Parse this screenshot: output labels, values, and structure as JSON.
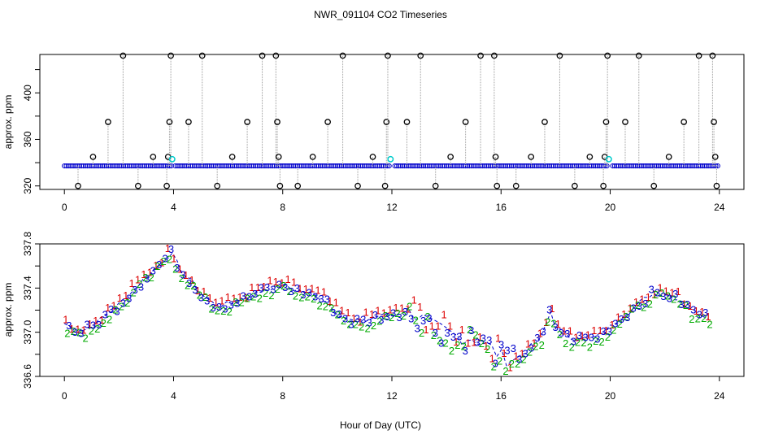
{
  "title": "NWR_091104  CO2 Timeseries",
  "chart_data": [
    {
      "type": "scatter",
      "panel": "top",
      "title": "",
      "xlabel": "",
      "ylabel": "approx. ppm",
      "xlim": [
        -0.9,
        24.9
      ],
      "ylim": [
        317,
        433
      ],
      "xticks": [
        0,
        4,
        8,
        12,
        16,
        20,
        24
      ],
      "yticks": [
        320,
        360,
        400
      ],
      "baseline_ppm": 337.2,
      "spike_values": [
        320,
        345,
        375,
        432
      ],
      "spikes": [
        {
          "x": 0.5,
          "y": 320
        },
        {
          "x": 1.05,
          "y": 345
        },
        {
          "x": 1.6,
          "y": 375
        },
        {
          "x": 2.15,
          "y": 432
        },
        {
          "x": 2.7,
          "y": 320
        },
        {
          "x": 3.25,
          "y": 345
        },
        {
          "x": 3.75,
          "y": 320
        },
        {
          "x": 3.8,
          "y": 345
        },
        {
          "x": 3.85,
          "y": 375
        },
        {
          "x": 3.9,
          "y": 432
        },
        {
          "x": 4.55,
          "y": 375
        },
        {
          "x": 5.05,
          "y": 432
        },
        {
          "x": 5.6,
          "y": 320
        },
        {
          "x": 6.15,
          "y": 345
        },
        {
          "x": 6.7,
          "y": 375
        },
        {
          "x": 7.25,
          "y": 432
        },
        {
          "x": 7.75,
          "y": 432
        },
        {
          "x": 7.8,
          "y": 375
        },
        {
          "x": 7.85,
          "y": 345
        },
        {
          "x": 7.9,
          "y": 320
        },
        {
          "x": 8.55,
          "y": 320
        },
        {
          "x": 9.1,
          "y": 345
        },
        {
          "x": 9.65,
          "y": 375
        },
        {
          "x": 10.2,
          "y": 432
        },
        {
          "x": 10.75,
          "y": 320
        },
        {
          "x": 11.3,
          "y": 345
        },
        {
          "x": 11.75,
          "y": 320
        },
        {
          "x": 11.8,
          "y": 375
        },
        {
          "x": 11.85,
          "y": 432
        },
        {
          "x": 12.55,
          "y": 375
        },
        {
          "x": 13.05,
          "y": 432
        },
        {
          "x": 13.6,
          "y": 320
        },
        {
          "x": 14.15,
          "y": 345
        },
        {
          "x": 14.7,
          "y": 375
        },
        {
          "x": 15.25,
          "y": 432
        },
        {
          "x": 15.75,
          "y": 432
        },
        {
          "x": 15.8,
          "y": 345
        },
        {
          "x": 15.85,
          "y": 320
        },
        {
          "x": 16.55,
          "y": 320
        },
        {
          "x": 17.1,
          "y": 345
        },
        {
          "x": 17.6,
          "y": 375
        },
        {
          "x": 18.15,
          "y": 432
        },
        {
          "x": 18.7,
          "y": 320
        },
        {
          "x": 19.25,
          "y": 345
        },
        {
          "x": 19.75,
          "y": 320
        },
        {
          "x": 19.8,
          "y": 345
        },
        {
          "x": 19.85,
          "y": 375
        },
        {
          "x": 19.9,
          "y": 432
        },
        {
          "x": 20.55,
          "y": 375
        },
        {
          "x": 21.05,
          "y": 432
        },
        {
          "x": 21.6,
          "y": 320
        },
        {
          "x": 22.15,
          "y": 345
        },
        {
          "x": 22.7,
          "y": 375
        },
        {
          "x": 23.25,
          "y": 432
        },
        {
          "x": 23.75,
          "y": 432
        },
        {
          "x": 23.8,
          "y": 375
        },
        {
          "x": 23.85,
          "y": 345
        },
        {
          "x": 23.9,
          "y": 320
        }
      ],
      "highlight_points": [
        {
          "x": 3.95,
          "y": 343
        },
        {
          "x": 11.95,
          "y": 343
        },
        {
          "x": 19.95,
          "y": 343
        }
      ],
      "gaps": [
        {
          "from": 3.95,
          "to": 4.05
        },
        {
          "from": 11.95,
          "to": 12.05
        },
        {
          "from": 19.95,
          "to": 20.05
        }
      ],
      "series_colors": {
        "open_circle": "#000000",
        "baseline_points": "#0000cc",
        "highlight_points": "#00cccc",
        "spike_lines": "#9a9a9a"
      }
    },
    {
      "type": "scatter",
      "panel": "bottom",
      "title": "",
      "xlabel": "Hour of Day (UTC)",
      "ylabel": "approx. ppm",
      "xlim": [
        -0.9,
        24.9
      ],
      "ylim": [
        336.6,
        337.8
      ],
      "xticks": [
        0,
        4,
        8,
        12,
        16,
        20,
        24
      ],
      "yticks": [
        336.6,
        337.0,
        337.4,
        337.8
      ],
      "ytick_labels": [
        "336.6",
        "337.0",
        "337.4",
        "337.8"
      ],
      "series": [
        {
          "name": "1",
          "symbol": "1",
          "color": "#dd0000",
          "offset_ppm": 0.06
        },
        {
          "name": "2",
          "symbol": "2",
          "color": "#00aa00",
          "offset_ppm": -0.06
        },
        {
          "name": "3",
          "symbol": "3",
          "color": "#0000cc",
          "offset_ppm": 0.0
        }
      ],
      "trend": {
        "x": [
          0,
          0.5,
          1,
          1.5,
          2,
          2.5,
          3,
          3.5,
          3.9,
          4.3,
          4.7,
          5,
          5.5,
          6,
          6.5,
          7,
          7.5,
          8,
          8.5,
          9,
          9.5,
          10,
          10.5,
          11,
          11.5,
          12,
          12.5,
          13,
          13.5,
          14,
          14.5,
          15,
          15.5,
          16,
          16.5,
          17,
          17.5,
          17.8,
          18,
          18.5,
          19,
          19.5,
          20,
          20.5,
          21,
          21.5,
          22,
          22.5,
          23,
          23.5
        ],
        "y": [
          337.08,
          337.0,
          337.05,
          337.15,
          337.25,
          337.38,
          337.5,
          337.62,
          337.72,
          337.55,
          337.45,
          337.35,
          337.25,
          337.25,
          337.3,
          337.35,
          337.4,
          337.42,
          337.38,
          337.35,
          337.3,
          337.18,
          337.1,
          337.1,
          337.15,
          337.15,
          337.2,
          337.15,
          337.05,
          337.0,
          336.95,
          336.95,
          336.88,
          336.78,
          336.75,
          336.85,
          336.95,
          337.2,
          337.05,
          336.95,
          336.95,
          336.95,
          337.05,
          337.15,
          337.25,
          337.35,
          337.35,
          337.3,
          337.2,
          337.15
        ]
      },
      "series_colors": {
        "connector_line": "#0000cc"
      }
    }
  ]
}
